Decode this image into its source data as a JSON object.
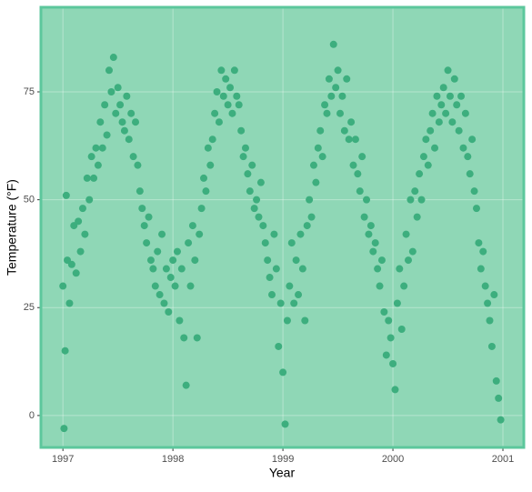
{
  "chart_data": {
    "type": "scatter",
    "xlabel": "Year",
    "ylabel": "Temperature (°F)",
    "color": "#3dae7e",
    "panel_color": "#8fd7b6",
    "border_color": "#5cc79c",
    "grid": true,
    "xlim": [
      1996.8,
      2001.19
    ],
    "ylim": [
      -7.4,
      94.6
    ],
    "xticks": [
      1997,
      1998,
      1999,
      2000,
      2001
    ],
    "yticks": [
      0,
      25,
      50,
      75
    ],
    "x": [
      1997.0,
      1997.01,
      1997.02,
      1997.03,
      1997.04,
      1997.06,
      1997.08,
      1997.1,
      1997.12,
      1997.14,
      1997.16,
      1997.18,
      1997.2,
      1997.22,
      1997.24,
      1997.26,
      1997.28,
      1997.3,
      1997.32,
      1997.34,
      1997.36,
      1997.38,
      1997.4,
      1997.42,
      1997.44,
      1997.46,
      1997.48,
      1997.5,
      1997.52,
      1997.54,
      1997.56,
      1997.58,
      1997.6,
      1997.62,
      1997.64,
      1997.66,
      1997.68,
      1997.7,
      1997.72,
      1997.74,
      1997.76,
      1997.78,
      1997.8,
      1997.82,
      1997.84,
      1997.86,
      1997.88,
      1997.9,
      1997.92,
      1997.94,
      1997.96,
      1997.98,
      1998.0,
      1998.02,
      1998.04,
      1998.06,
      1998.08,
      1998.1,
      1998.12,
      1998.14,
      1998.16,
      1998.18,
      1998.2,
      1998.22,
      1998.24,
      1998.26,
      1998.28,
      1998.3,
      1998.32,
      1998.34,
      1998.36,
      1998.38,
      1998.4,
      1998.42,
      1998.44,
      1998.46,
      1998.48,
      1998.5,
      1998.52,
      1998.54,
      1998.56,
      1998.58,
      1998.6,
      1998.62,
      1998.64,
      1998.66,
      1998.68,
      1998.7,
      1998.72,
      1998.74,
      1998.76,
      1998.78,
      1998.8,
      1998.82,
      1998.84,
      1998.86,
      1998.88,
      1998.9,
      1998.92,
      1998.94,
      1998.96,
      1998.98,
      1999.0,
      1999.02,
      1999.04,
      1999.06,
      1999.08,
      1999.1,
      1999.12,
      1999.14,
      1999.16,
      1999.18,
      1999.2,
      1999.22,
      1999.24,
      1999.26,
      1999.28,
      1999.3,
      1999.32,
      1999.34,
      1999.36,
      1999.38,
      1999.4,
      1999.42,
      1999.44,
      1999.46,
      1999.48,
      1999.5,
      1999.52,
      1999.54,
      1999.56,
      1999.58,
      1999.6,
      1999.62,
      1999.64,
      1999.66,
      1999.68,
      1999.7,
      1999.72,
      1999.74,
      1999.76,
      1999.78,
      1999.8,
      1999.82,
      1999.84,
      1999.86,
      1999.88,
      1999.9,
      1999.92,
      1999.94,
      1999.96,
      1999.98,
      2000.0,
      2000.02,
      2000.04,
      2000.06,
      2000.08,
      2000.1,
      2000.12,
      2000.14,
      2000.16,
      2000.18,
      2000.2,
      2000.22,
      2000.24,
      2000.26,
      2000.28,
      2000.3,
      2000.32,
      2000.34,
      2000.36,
      2000.38,
      2000.4,
      2000.42,
      2000.44,
      2000.46,
      2000.48,
      2000.5,
      2000.52,
      2000.54,
      2000.56,
      2000.58,
      2000.6,
      2000.62,
      2000.64,
      2000.66,
      2000.68,
      2000.7,
      2000.72,
      2000.74,
      2000.76,
      2000.78,
      2000.8,
      2000.82,
      2000.84,
      2000.86,
      2000.88,
      2000.9,
      2000.92,
      2000.94,
      2000.96,
      2000.98
    ],
    "values": [
      30,
      -3,
      15,
      51,
      36,
      26,
      35,
      44,
      33,
      45,
      38,
      48,
      42,
      55,
      50,
      60,
      55,
      62,
      58,
      68,
      62,
      72,
      65,
      80,
      75,
      83,
      70,
      76,
      72,
      68,
      66,
      74,
      64,
      70,
      60,
      68,
      58,
      52,
      48,
      44,
      40,
      46,
      36,
      34,
      30,
      38,
      28,
      42,
      26,
      34,
      24,
      32,
      36,
      30,
      38,
      22,
      34,
      18,
      7,
      40,
      30,
      44,
      36,
      18,
      42,
      48,
      55,
      52,
      62,
      58,
      64,
      70,
      75,
      68,
      80,
      74,
      78,
      72,
      76,
      70,
      80,
      74,
      72,
      66,
      60,
      62,
      56,
      52,
      58,
      48,
      50,
      46,
      54,
      44,
      40,
      36,
      32,
      28,
      42,
      34,
      16,
      26,
      10,
      -2,
      22,
      30,
      40,
      26,
      36,
      28,
      42,
      34,
      22,
      44,
      50,
      46,
      58,
      54,
      62,
      66,
      60,
      72,
      70,
      78,
      74,
      86,
      76,
      80,
      70,
      74,
      66,
      78,
      64,
      68,
      58,
      64,
      56,
      52,
      60,
      46,
      50,
      42,
      44,
      38,
      40,
      34,
      30,
      36,
      24,
      14,
      22,
      18,
      12,
      6,
      26,
      34,
      20,
      30,
      42,
      36,
      50,
      38,
      52,
      46,
      56,
      50,
      60,
      64,
      58,
      66,
      70,
      62,
      74,
      68,
      72,
      76,
      70,
      80,
      74,
      68,
      78,
      72,
      66,
      74,
      62,
      70,
      60,
      56,
      64,
      52,
      48,
      40,
      34,
      38,
      30,
      26,
      22,
      16,
      28,
      8,
      4,
      -1
    ]
  }
}
